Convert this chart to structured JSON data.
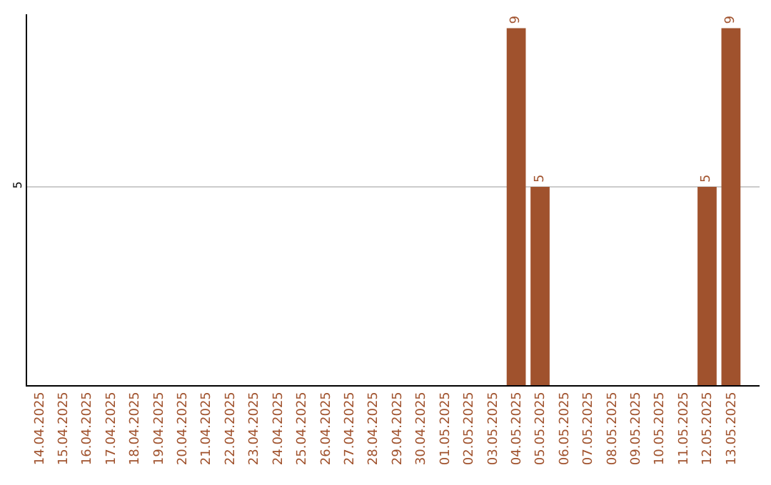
{
  "chart_data": {
    "type": "bar",
    "categories": [
      "14.04.2025",
      "15.04.2025",
      "16.04.2025",
      "17.04.2025",
      "18.04.2025",
      "19.04.2025",
      "20.04.2025",
      "21.04.2025",
      "22.04.2025",
      "23.04.2025",
      "24.04.2025",
      "25.04.2025",
      "26.04.2025",
      "27.04.2025",
      "28.04.2025",
      "29.04.2025",
      "30.04.2025",
      "01.05.2025",
      "02.05.2025",
      "03.05.2025",
      "04.05.2025",
      "05.05.2025",
      "06.05.2025",
      "07.05.2025",
      "08.05.2025",
      "09.05.2025",
      "10.05.2025",
      "11.05.2025",
      "12.05.2025",
      "13.05.2025"
    ],
    "values": [
      null,
      null,
      null,
      null,
      null,
      null,
      null,
      null,
      null,
      null,
      null,
      null,
      null,
      null,
      null,
      null,
      null,
      null,
      null,
      null,
      9,
      5,
      null,
      null,
      null,
      null,
      null,
      null,
      5,
      9
    ],
    "color": "#a0522d",
    "ylim": [
      0,
      9.35
    ],
    "yticks": [
      5
    ],
    "grid": "y",
    "data_labels": true
  }
}
